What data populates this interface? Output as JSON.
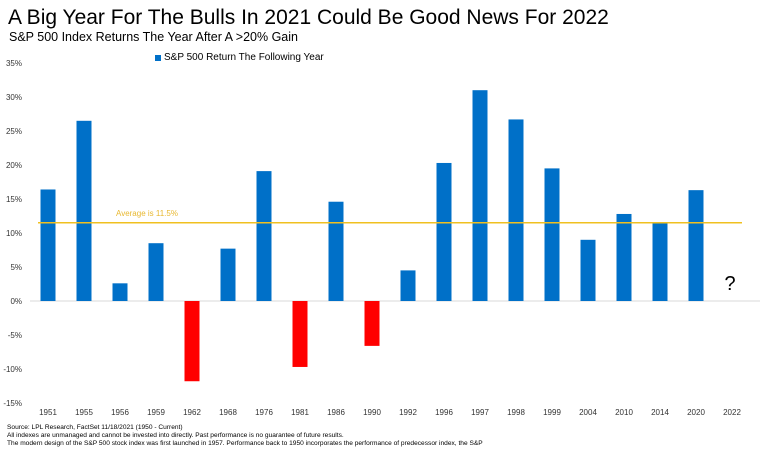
{
  "title": "A Big Year For The Bulls In 2021 Could Be Good News For 2022",
  "subtitle": "S&P 500 Index Returns The Year After A >20% Gain",
  "footnotes": [
    "Source: LPL Research, FactSet 11/18/2021 (1950 - Current)",
    "All indexes are unmanaged  and cannot be invested into directly. Past performance is no guarantee of future results.",
    "The modern design of the S&P 500 stock index was first launched in 1957. Performance back to 1950 incorporates the performance of predecessor index, the S&P"
  ],
  "colors": {
    "positive": "#0070c8",
    "negative": "#ff0000",
    "average": "#f0c020",
    "axis": "#d9d9d9"
  },
  "chart_data": {
    "type": "bar",
    "title": "A Big Year For The Bulls In 2021 Could Be Good News For 2022",
    "subtitle": "S&P 500 Index Returns The Year After A >20% Gain",
    "xlabel": "",
    "ylabel": "",
    "legend": {
      "label": "S&P 500 Return The Following Year",
      "position": "top-center"
    },
    "categories": [
      "1951",
      "1955",
      "1956",
      "1959",
      "1962",
      "1968",
      "1976",
      "1981",
      "1986",
      "1990",
      "1992",
      "1996",
      "1997",
      "1998",
      "1999",
      "2004",
      "2010",
      "2014",
      "2020",
      "2022"
    ],
    "series": [
      {
        "name": "S&P 500 Return The Following Year",
        "values": [
          16.4,
          26.5,
          2.6,
          8.5,
          -11.8,
          7.7,
          19.1,
          -9.7,
          14.6,
          -6.6,
          4.5,
          20.3,
          31.0,
          26.7,
          19.5,
          9.0,
          12.8,
          11.4,
          16.3,
          null
        ]
      }
    ],
    "ylim": [
      -15,
      35
    ],
    "yticks": [
      35,
      30,
      25,
      20,
      15,
      10,
      5,
      0,
      -5,
      -10,
      -15
    ],
    "ytick_labels": [
      "35%",
      "30%",
      "25%",
      "20%",
      "15%",
      "10%",
      "5%",
      "0%",
      "-5%",
      "-10%",
      "-15%"
    ],
    "grid": false,
    "average": {
      "value": 11.5,
      "label": "Average is 11.5%"
    },
    "annotations": [
      {
        "category": "2022",
        "text": "?"
      }
    ]
  }
}
